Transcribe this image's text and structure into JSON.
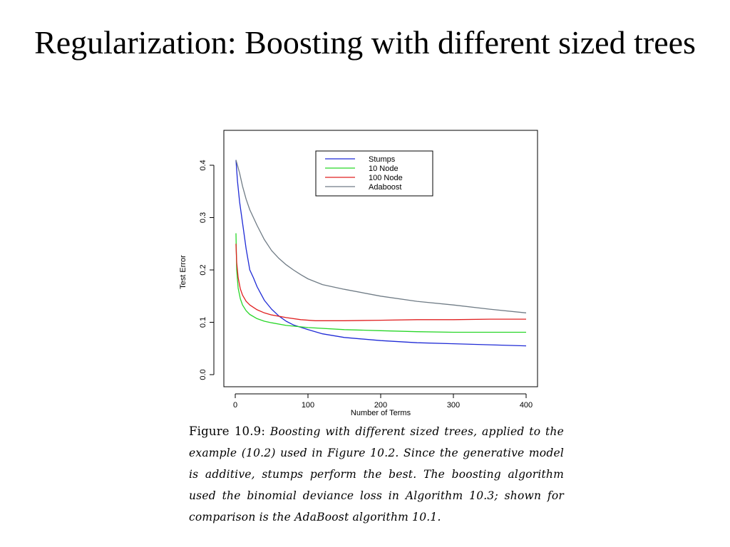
{
  "slide": {
    "title": "Regularization: Boosting with different sized trees"
  },
  "chart_data": {
    "type": "line",
    "xlabel": "Number of Terms",
    "ylabel": "Test Error",
    "xlim": [
      0,
      400
    ],
    "ylim": [
      0,
      0.4
    ],
    "x_ticks": [
      "0",
      "100",
      "200",
      "300",
      "400"
    ],
    "y_ticks": [
      "0.0",
      "0.1",
      "0.2",
      "0.3",
      "0.4"
    ],
    "grid": false,
    "legend_position": "top-center",
    "series": [
      {
        "name": "Stumps",
        "color": "#1f2bd6",
        "x": [
          1,
          3,
          6,
          10,
          15,
          20,
          25,
          30,
          35,
          40,
          50,
          60,
          70,
          80,
          100,
          120,
          150,
          200,
          250,
          300,
          350,
          400
        ],
        "y": [
          0.41,
          0.37,
          0.33,
          0.29,
          0.24,
          0.2,
          0.185,
          0.168,
          0.155,
          0.142,
          0.125,
          0.112,
          0.102,
          0.095,
          0.086,
          0.078,
          0.071,
          0.065,
          0.061,
          0.059,
          0.057,
          0.055
        ]
      },
      {
        "name": "10 Node",
        "color": "#28d628",
        "x": [
          1,
          2,
          4,
          7,
          10,
          15,
          20,
          30,
          40,
          50,
          70,
          100,
          150,
          200,
          250,
          300,
          350,
          400
        ],
        "y": [
          0.27,
          0.2,
          0.165,
          0.145,
          0.133,
          0.122,
          0.115,
          0.107,
          0.102,
          0.099,
          0.094,
          0.09,
          0.086,
          0.084,
          0.082,
          0.081,
          0.081,
          0.081
        ]
      },
      {
        "name": "100 Node",
        "color": "#e02020",
        "x": [
          1,
          2,
          4,
          7,
          10,
          15,
          20,
          30,
          40,
          50,
          70,
          90,
          110,
          130,
          150,
          200,
          250,
          300,
          350,
          400
        ],
        "y": [
          0.25,
          0.215,
          0.185,
          0.164,
          0.152,
          0.14,
          0.133,
          0.124,
          0.118,
          0.114,
          0.109,
          0.105,
          0.103,
          0.103,
          0.103,
          0.104,
          0.105,
          0.105,
          0.106,
          0.106
        ]
      },
      {
        "name": "Adaboost",
        "color": "#707c86",
        "x": [
          1,
          3,
          6,
          10,
          15,
          20,
          25,
          30,
          40,
          50,
          60,
          70,
          80,
          90,
          100,
          120,
          150,
          200,
          250,
          300,
          350,
          400
        ],
        "y": [
          0.41,
          0.4,
          0.385,
          0.36,
          0.335,
          0.315,
          0.3,
          0.285,
          0.258,
          0.237,
          0.222,
          0.21,
          0.2,
          0.191,
          0.183,
          0.172,
          0.163,
          0.15,
          0.14,
          0.133,
          0.125,
          0.118
        ]
      }
    ]
  },
  "caption": {
    "label": "Figure 10.9:",
    "text": "Boosting with different sized trees, applied to the example (10.2) used in Figure 10.2. Since the generative model is additive, stumps perform the best. The boosting algorithm used the binomial deviance loss in Algorithm 10.3; shown for comparison is the AdaBoost algorithm 10.1."
  }
}
